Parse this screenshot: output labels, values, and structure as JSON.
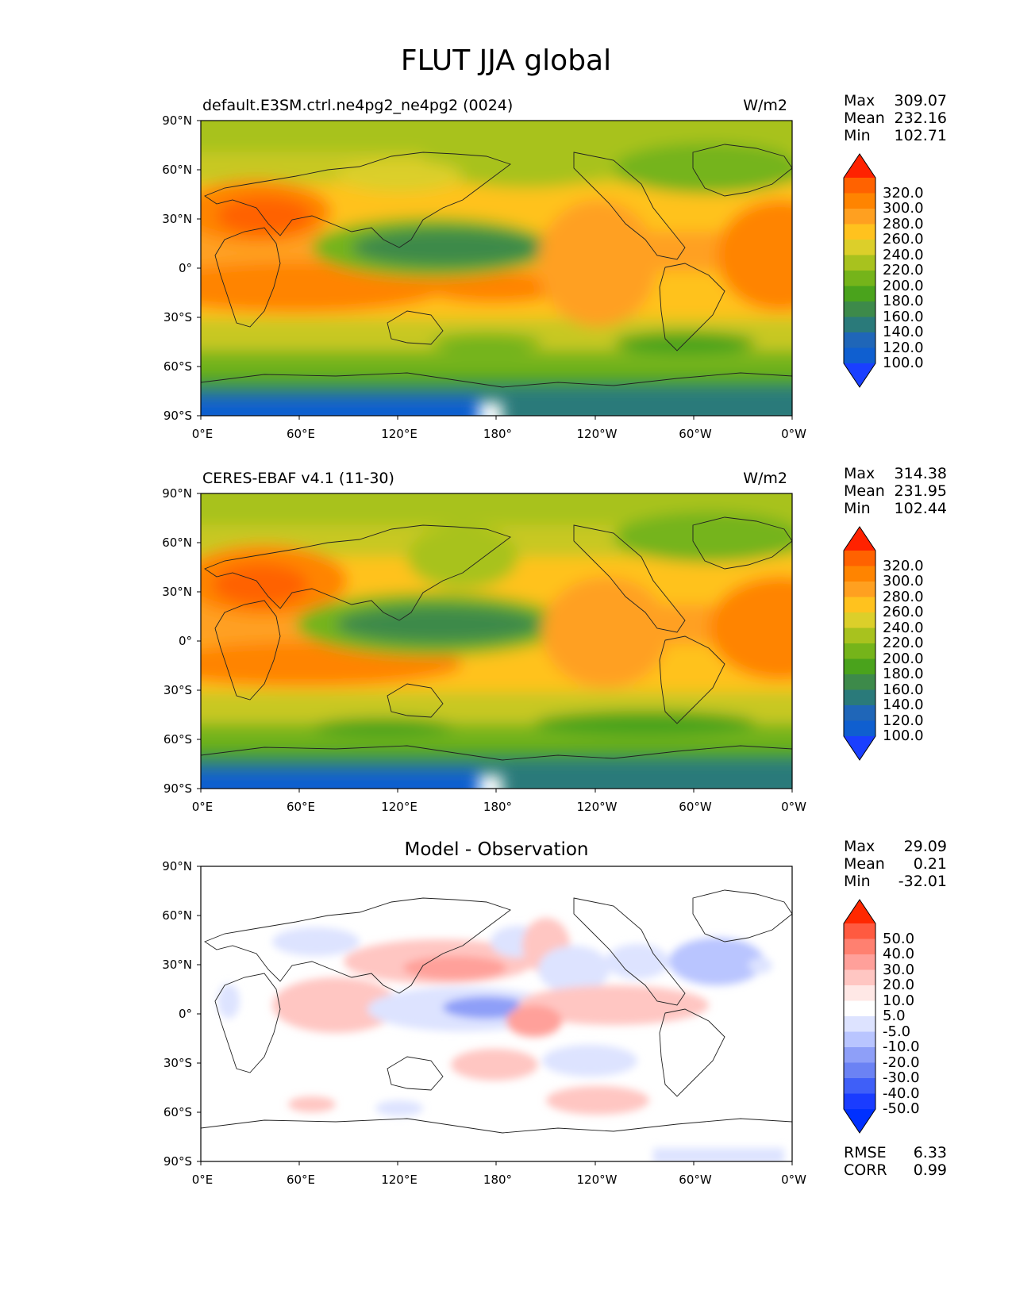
{
  "title": "FLUT JJA global",
  "axes": {
    "lat_ticks": [
      "90°N",
      "60°N",
      "30°N",
      "0°",
      "30°S",
      "60°S",
      "90°S"
    ],
    "lon_ticks": [
      "0°E",
      "60°E",
      "120°E",
      "180°",
      "120°W",
      "60°W",
      "0°W"
    ]
  },
  "panels": [
    {
      "title_left": "default.E3SM.ctrl.ne4pg2_ne4pg2 (0024)",
      "title_right": "W/m2",
      "stats": {
        "max_label": "Max",
        "max": "309.07",
        "mean_label": "Mean",
        "mean": "232.16",
        "min_label": "Min",
        "min": "102.71"
      },
      "colorbar_labels": [
        "320.0",
        "300.0",
        "280.0",
        "260.0",
        "240.0",
        "220.0",
        "200.0",
        "180.0",
        "160.0",
        "140.0",
        "120.0",
        "100.0"
      ]
    },
    {
      "title_left": "CERES-EBAF v4.1 (11-30)",
      "title_right": "W/m2",
      "stats": {
        "max_label": "Max",
        "max": "314.38",
        "mean_label": "Mean",
        "mean": "231.95",
        "min_label": "Min",
        "min": "102.44"
      },
      "colorbar_labels": [
        "320.0",
        "300.0",
        "280.0",
        "260.0",
        "240.0",
        "220.0",
        "200.0",
        "180.0",
        "160.0",
        "140.0",
        "120.0",
        "100.0"
      ]
    },
    {
      "title_center": "Model - Observation",
      "stats": {
        "max_label": "Max",
        "max": "29.09",
        "mean_label": "Mean",
        "mean": "0.21",
        "min_label": "Min",
        "min": "-32.01"
      },
      "colorbar_labels": [
        "50.0",
        "40.0",
        "30.0",
        "20.0",
        "10.0",
        "5.0",
        "-5.0",
        "-10.0",
        "-20.0",
        "-30.0",
        "-40.0",
        "-50.0"
      ],
      "metrics": {
        "rmse_label": "RMSE",
        "rmse": "6.33",
        "corr_label": "CORR",
        "corr": "0.99"
      }
    }
  ],
  "colors": {
    "abs_scale": [
      "#ff2200",
      "#ff6200",
      "#ff8400",
      "#ffa020",
      "#ffc21e",
      "#dccf2a",
      "#a8c21e",
      "#75b41a",
      "#4aa31c",
      "#3d8a4a",
      "#2a7a7a",
      "#1f66b8",
      "#0f5fd0",
      "#1a3fff"
    ],
    "diff_scale": [
      "#ff2800",
      "#ff5a40",
      "#ff8070",
      "#ffa09a",
      "#ffc6c2",
      "#ffe8e6",
      "#ffffff",
      "#dde3ff",
      "#b9c5ff",
      "#8e9ff8",
      "#6b82f4",
      "#3f5ff8",
      "#1a3cff",
      "#0030ff"
    ]
  },
  "chart_data": [
    {
      "type": "heatmap",
      "title": "default.E3SM.ctrl.ne4pg2_ne4pg2 (0024)",
      "units": "W/m2",
      "xlim": [
        0,
        360
      ],
      "ylim": [
        -90,
        90
      ],
      "levels": [
        100,
        120,
        140,
        160,
        180,
        200,
        220,
        240,
        260,
        280,
        300,
        320
      ],
      "stats": {
        "max": 309.07,
        "mean": 232.16,
        "min": 102.71
      }
    },
    {
      "type": "heatmap",
      "title": "CERES-EBAF v4.1 (11-30)",
      "units": "W/m2",
      "xlim": [
        0,
        360
      ],
      "ylim": [
        -90,
        90
      ],
      "levels": [
        100,
        120,
        140,
        160,
        180,
        200,
        220,
        240,
        260,
        280,
        300,
        320
      ],
      "stats": {
        "max": 314.38,
        "mean": 231.95,
        "min": 102.44
      }
    },
    {
      "type": "heatmap",
      "title": "Model - Observation",
      "xlim": [
        0,
        360
      ],
      "ylim": [
        -90,
        90
      ],
      "levels": [
        -50,
        -40,
        -30,
        -20,
        -10,
        -5,
        5,
        10,
        20,
        30,
        40,
        50
      ],
      "stats": {
        "max": 29.09,
        "mean": 0.21,
        "min": -32.01,
        "rmse": 6.33,
        "corr": 0.99
      }
    }
  ]
}
